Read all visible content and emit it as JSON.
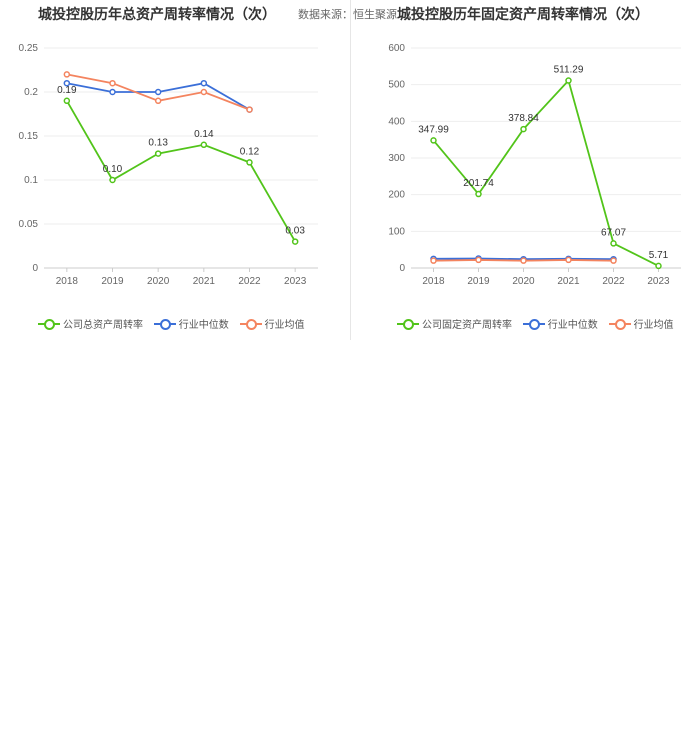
{
  "header": {
    "left_title": "城投控股历年总资产周转率情况（次）",
    "right_title": "城投控股历年固定资产周转率情况（次）",
    "source_label": "数据来源：恒生聚源"
  },
  "colors": {
    "company": "#52c41a",
    "median": "#3b6fd8",
    "average": "#f4845f",
    "grid": "#eeeeee",
    "axis": "#cccccc"
  },
  "chart_data": [
    {
      "type": "line",
      "title": "城投控股历年总资产周转率情况（次）",
      "categories": [
        "2018",
        "2019",
        "2020",
        "2021",
        "2022",
        "2023"
      ],
      "y_tick_labels": [
        "0",
        "0.05",
        "0.1",
        "0.15",
        "0.2",
        "0.25"
      ],
      "ylim": [
        0,
        0.25
      ],
      "series": [
        {
          "name": "公司总资产周转率",
          "key": "company",
          "values": [
            0.19,
            0.1,
            0.13,
            0.14,
            0.12,
            0.03
          ],
          "labels": [
            "0.19",
            "0.10",
            "0.13",
            "0.14",
            "0.12",
            "0.03"
          ]
        },
        {
          "name": "行业中位数",
          "key": "median",
          "values": [
            0.21,
            0.2,
            0.2,
            0.21,
            0.18,
            null
          ]
        },
        {
          "name": "行业均值",
          "key": "average",
          "values": [
            0.22,
            0.21,
            0.19,
            0.2,
            0.18,
            null
          ]
        }
      ],
      "legend": [
        "公司总资产周转率",
        "行业中位数",
        "行业均值"
      ],
      "legend_position": "bottom"
    },
    {
      "type": "line",
      "title": "城投控股历年固定资产周转率情况（次）",
      "categories": [
        "2018",
        "2019",
        "2020",
        "2021",
        "2022",
        "2023"
      ],
      "y_tick_labels": [
        "0",
        "100",
        "200",
        "300",
        "400",
        "500",
        "600"
      ],
      "ylim": [
        0,
        600
      ],
      "series": [
        {
          "name": "公司固定资产周转率",
          "key": "company",
          "values": [
            347.99,
            201.74,
            378.84,
            511.29,
            67.07,
            5.71
          ],
          "labels": [
            "347.99",
            "201.74",
            "378.84",
            "511.29",
            "67.07",
            "5.71"
          ]
        },
        {
          "name": "行业中位数",
          "key": "median",
          "values": [
            25,
            26,
            24,
            25,
            24,
            null
          ]
        },
        {
          "name": "行业均值",
          "key": "average",
          "values": [
            20,
            22,
            20,
            22,
            20,
            null
          ]
        }
      ],
      "legend": [
        "公司固定资产周转率",
        "行业中位数",
        "行业均值"
      ],
      "legend_position": "bottom"
    }
  ]
}
